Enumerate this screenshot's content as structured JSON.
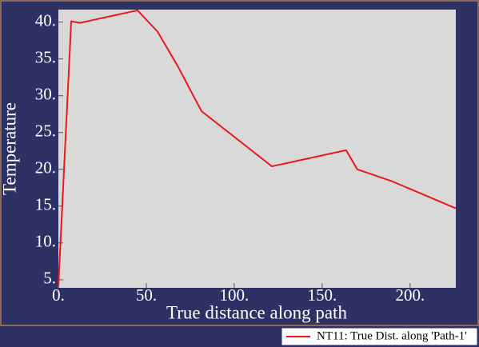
{
  "chart_data": {
    "type": "line",
    "x_label": "True distance along path",
    "y_label": "Temperature",
    "x": [
      0,
      7.3,
      12.3,
      45,
      56.4,
      67.7,
      81.4,
      121.4,
      163.6,
      170,
      189.5,
      226
    ],
    "series": [
      {
        "name": "NT11: True Dist. along 'Path-1'",
        "color": "#e8191b",
        "values": [
          4.1,
          40.1,
          39.9,
          41.6,
          38.7,
          34.1,
          27.9,
          20.4,
          22.6,
          20.0,
          18.4,
          14.7
        ]
      }
    ],
    "xlim": [
      0,
      226
    ],
    "ylim": [
      3.9,
      41.7
    ],
    "xticks": [
      {
        "value": 0,
        "label": "0."
      },
      {
        "value": 50,
        "label": "50."
      },
      {
        "value": 100,
        "label": "100."
      },
      {
        "value": 150,
        "label": "150."
      },
      {
        "value": 200,
        "label": "200."
      }
    ],
    "yticks": [
      {
        "value": 5,
        "label": "5."
      },
      {
        "value": 10,
        "label": "10."
      },
      {
        "value": 15,
        "label": "15."
      },
      {
        "value": 20,
        "label": "20."
      },
      {
        "value": 25,
        "label": "25."
      },
      {
        "value": 30,
        "label": "30."
      },
      {
        "value": 35,
        "label": "35."
      },
      {
        "value": 40,
        "label": "40."
      }
    ],
    "legend": "bottom-right"
  }
}
